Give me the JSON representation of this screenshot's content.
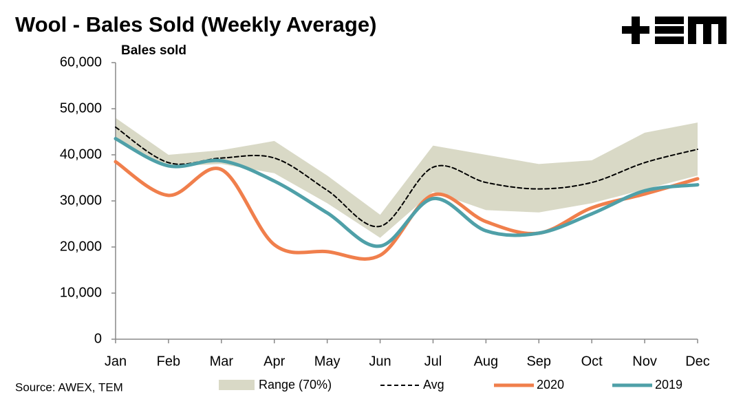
{
  "chart_data": {
    "type": "line",
    "title": "Wool - Bales Sold (Weekly Average)",
    "y_label": "Bales sold",
    "source": "Source: AWEX, TEM",
    "categories": [
      "Jan",
      "Feb",
      "Mar",
      "Apr",
      "May",
      "Jun",
      "Jul",
      "Aug",
      "Sep",
      "Oct",
      "Nov",
      "Dec"
    ],
    "ylim": [
      0,
      60000
    ],
    "yticks": [
      0,
      {
        "value": 10000,
        "label": "10,000"
      },
      {
        "value": 20000,
        "label": "20,000"
      },
      {
        "value": 30000,
        "label": "30,000"
      },
      {
        "value": 40000,
        "label": "40,000"
      },
      {
        "value": 50000,
        "label": "50,000"
      },
      {
        "value": 60000,
        "label": "60,000"
      }
    ],
    "range": {
      "name": "Range (70%)",
      "color": "#d9d9c6",
      "high": [
        48000,
        40000,
        41000,
        43000,
        35500,
        27000,
        42000,
        40000,
        38000,
        38800,
        44800,
        47000
      ],
      "low": [
        43500,
        37500,
        38000,
        36000,
        29500,
        22000,
        32000,
        28000,
        27500,
        29500,
        32500,
        35500
      ]
    },
    "series": [
      {
        "name": "Avg",
        "color": "#000000",
        "dashed": true,
        "values": [
          46000,
          38300,
          39300,
          39300,
          32300,
          24500,
          37300,
          34000,
          32600,
          34000,
          38300,
          41200
        ]
      },
      {
        "name": "2020",
        "color": "#f07f4c",
        "dashed": false,
        "values": [
          38500,
          31200,
          36800,
          20500,
          19000,
          18200,
          31300,
          25500,
          23000,
          28500,
          31500,
          34800
        ]
      },
      {
        "name": "2019",
        "color": "#4fa0a8",
        "dashed": false,
        "values": [
          43500,
          37600,
          38700,
          34300,
          27400,
          20200,
          30500,
          23500,
          23000,
          27200,
          32200,
          33500
        ]
      }
    ]
  }
}
